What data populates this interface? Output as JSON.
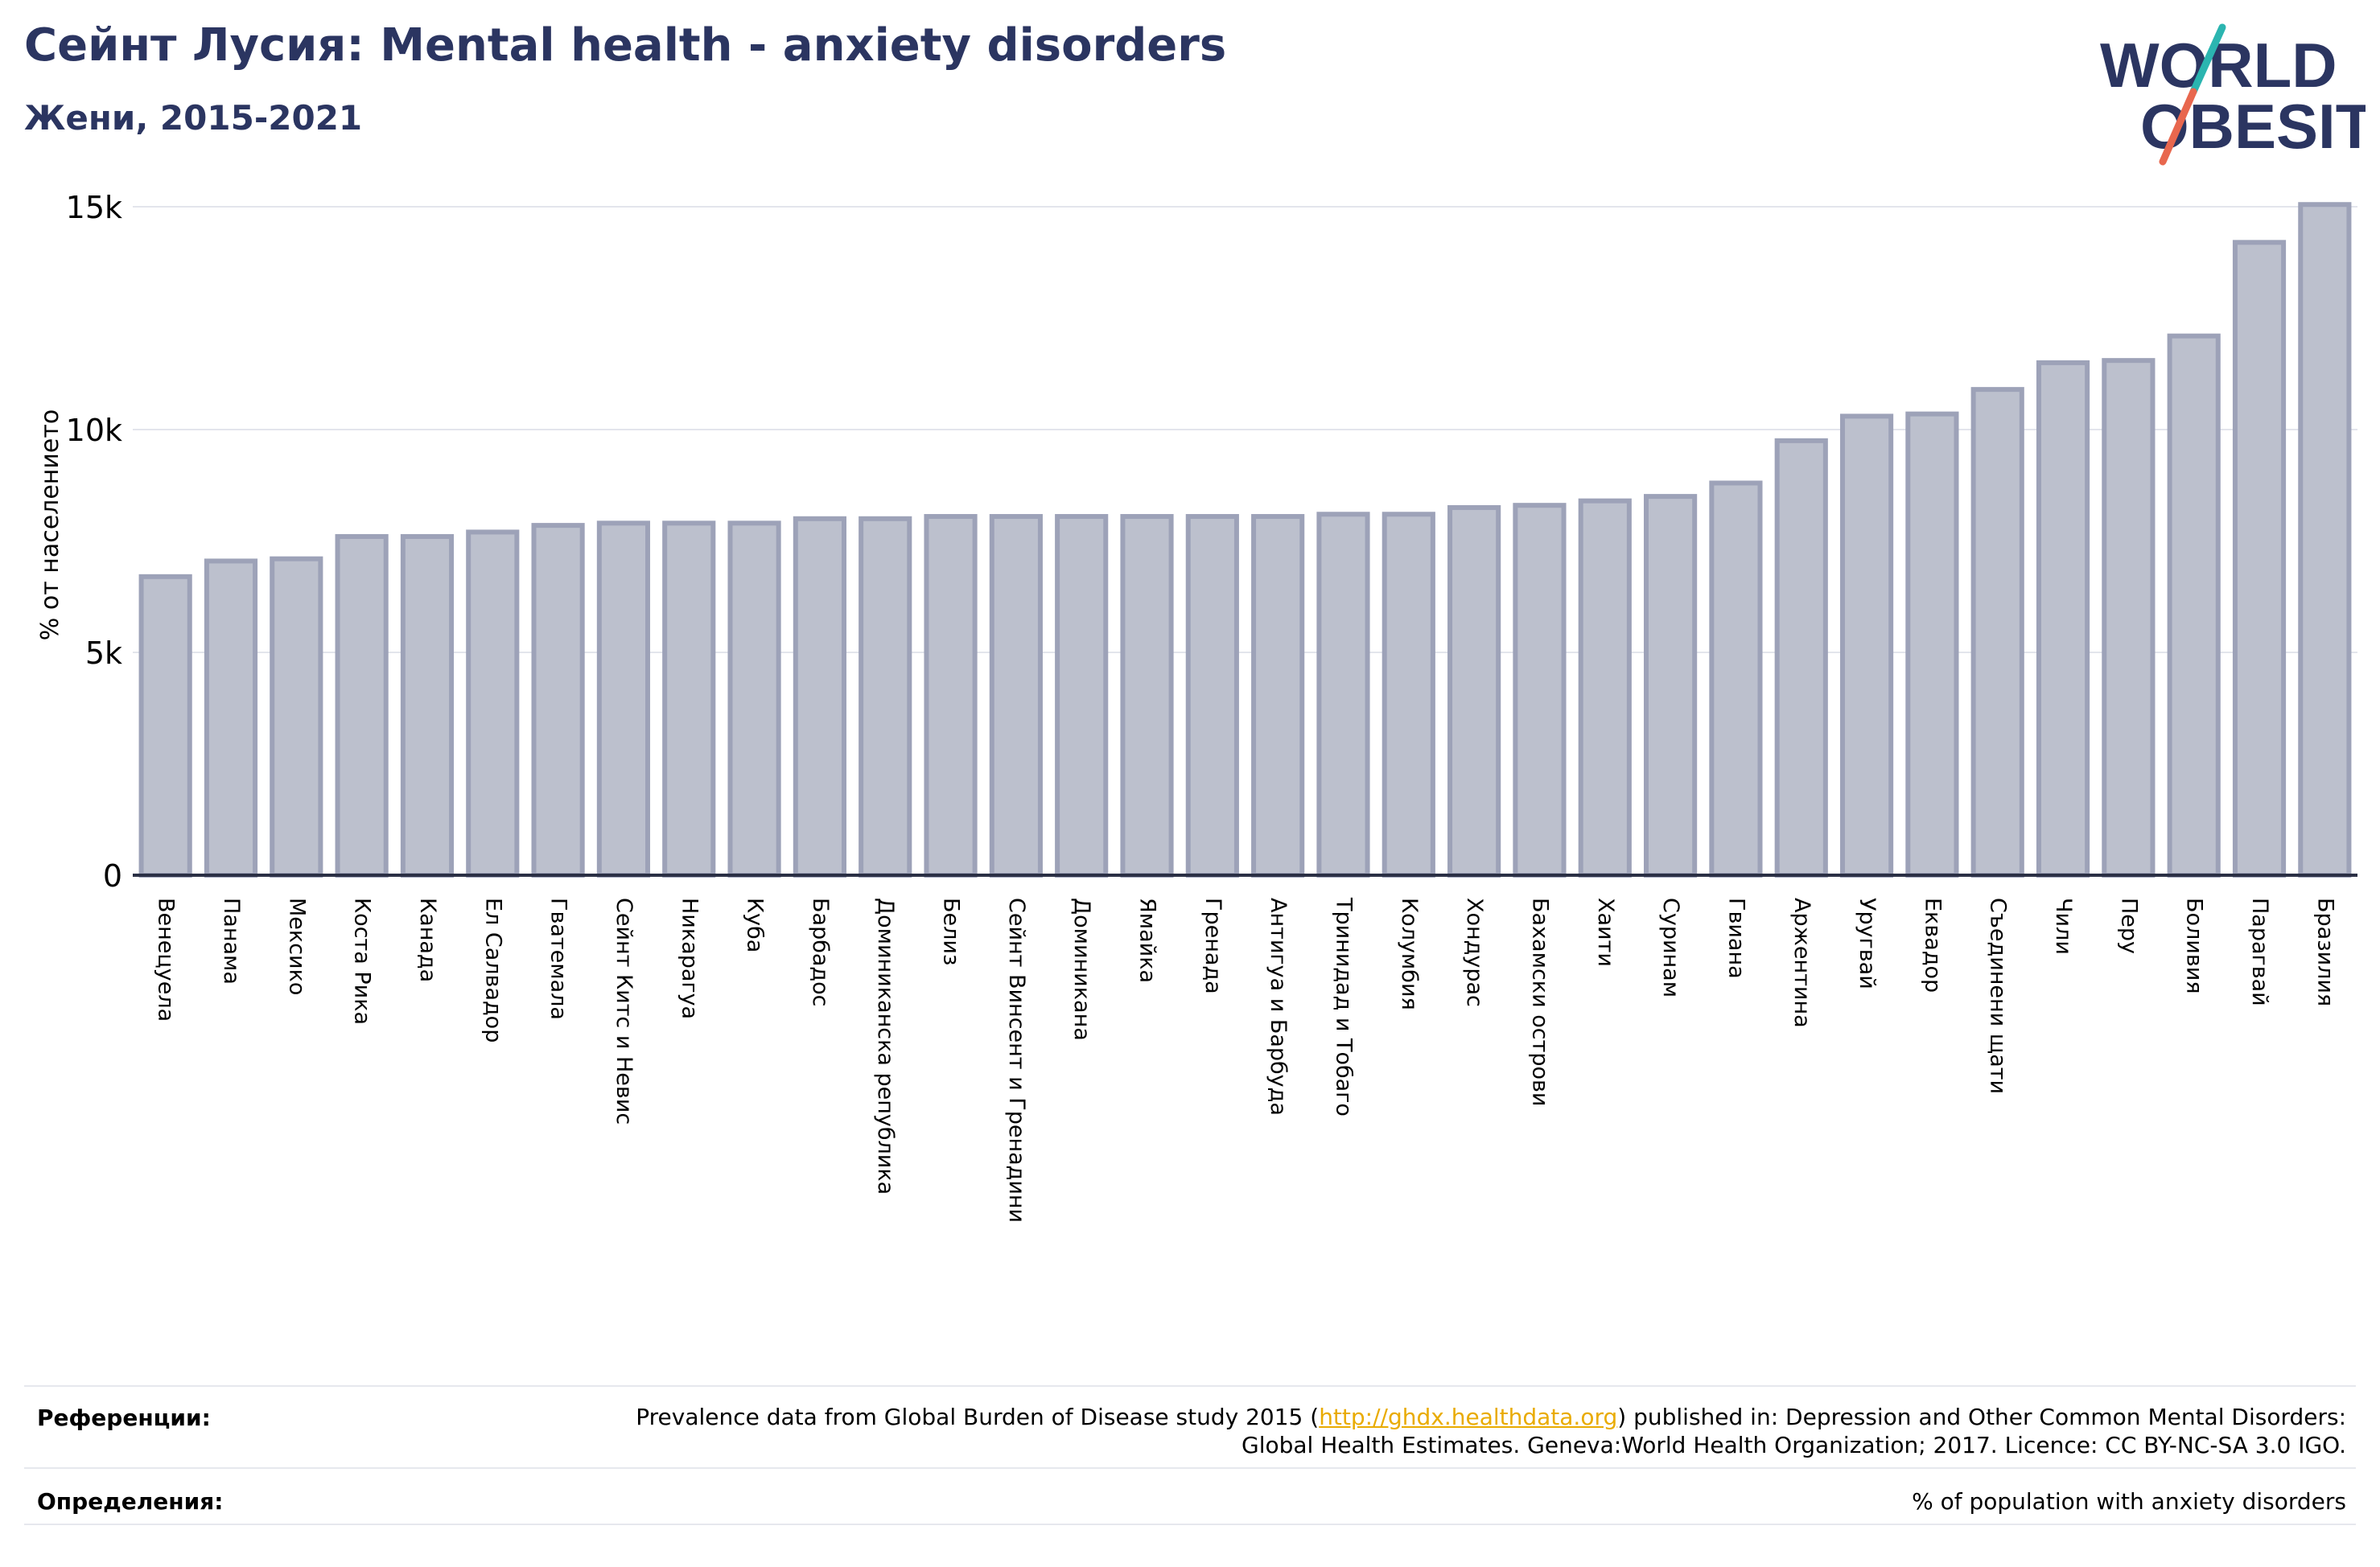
{
  "header": {
    "title": "Сейнт Лусия: Mental health - anxiety disorders",
    "subtitle": "Жени, 2015-2021"
  },
  "logo": {
    "line1": "WORLD",
    "line2": "OBESITY",
    "colors": {
      "text": "#2b3561",
      "slash_top": "#2bb5b0",
      "slash_bottom": "#e8674e"
    }
  },
  "chart_data": {
    "type": "bar",
    "ylabel": "% от населението",
    "ylim": [
      0,
      15000
    ],
    "yticks": [
      0,
      5000,
      10000,
      15000
    ],
    "ytick_labels": [
      "0",
      "5k",
      "10k",
      "15k"
    ],
    "grid": true,
    "bar_fill": "#bcc0cd",
    "bar_stroke": "#9da2b8",
    "categories": [
      "Венецуела",
      "Панама",
      "Мексико",
      "Коста Рика",
      "Канада",
      "Ел Салвадор",
      "Гватемала",
      "Сейнт Китс и Невис",
      "Никарагуа",
      "Куба",
      "Барбадос",
      "Доминиканска република",
      "Белиз",
      "Сейнт Винсент и Гренадини",
      "Доминикана",
      "Ямайка",
      "Гренада",
      "Антигуа и Барбуда",
      "Тринидад и Тобаго",
      "Колумбия",
      "Хондурас",
      "Бахамски острови",
      "Хаити",
      "Суринам",
      "Гвиана",
      "Аржентина",
      "Уругвай",
      "Еквадор",
      "Съединени щати",
      "Чили",
      "Перу",
      "Боливия",
      "Парагвай",
      "Бразилия"
    ],
    "values": [
      6700,
      7050,
      7100,
      7600,
      7600,
      7700,
      7850,
      7900,
      7900,
      7900,
      8000,
      8000,
      8050,
      8050,
      8050,
      8050,
      8050,
      8050,
      8100,
      8100,
      8250,
      8300,
      8400,
      8500,
      8800,
      9750,
      10300,
      10350,
      10900,
      11500,
      11550,
      12100,
      14200,
      15050
    ]
  },
  "footer": {
    "references_label": "Референции:",
    "references_pre": "Prevalence data from Global Burden of Disease study 2015 (",
    "references_link": "http://ghdx.healthdata.org",
    "references_post": ") published in: Depression and Other Common Mental Disorders: Global Health Estimates. Geneva:World Health Organization; 2017. Licence: CC BY-NC-SA 3.0 IGO.",
    "definitions_label": "Определения:",
    "definitions_text": "% of population with anxiety disorders"
  }
}
